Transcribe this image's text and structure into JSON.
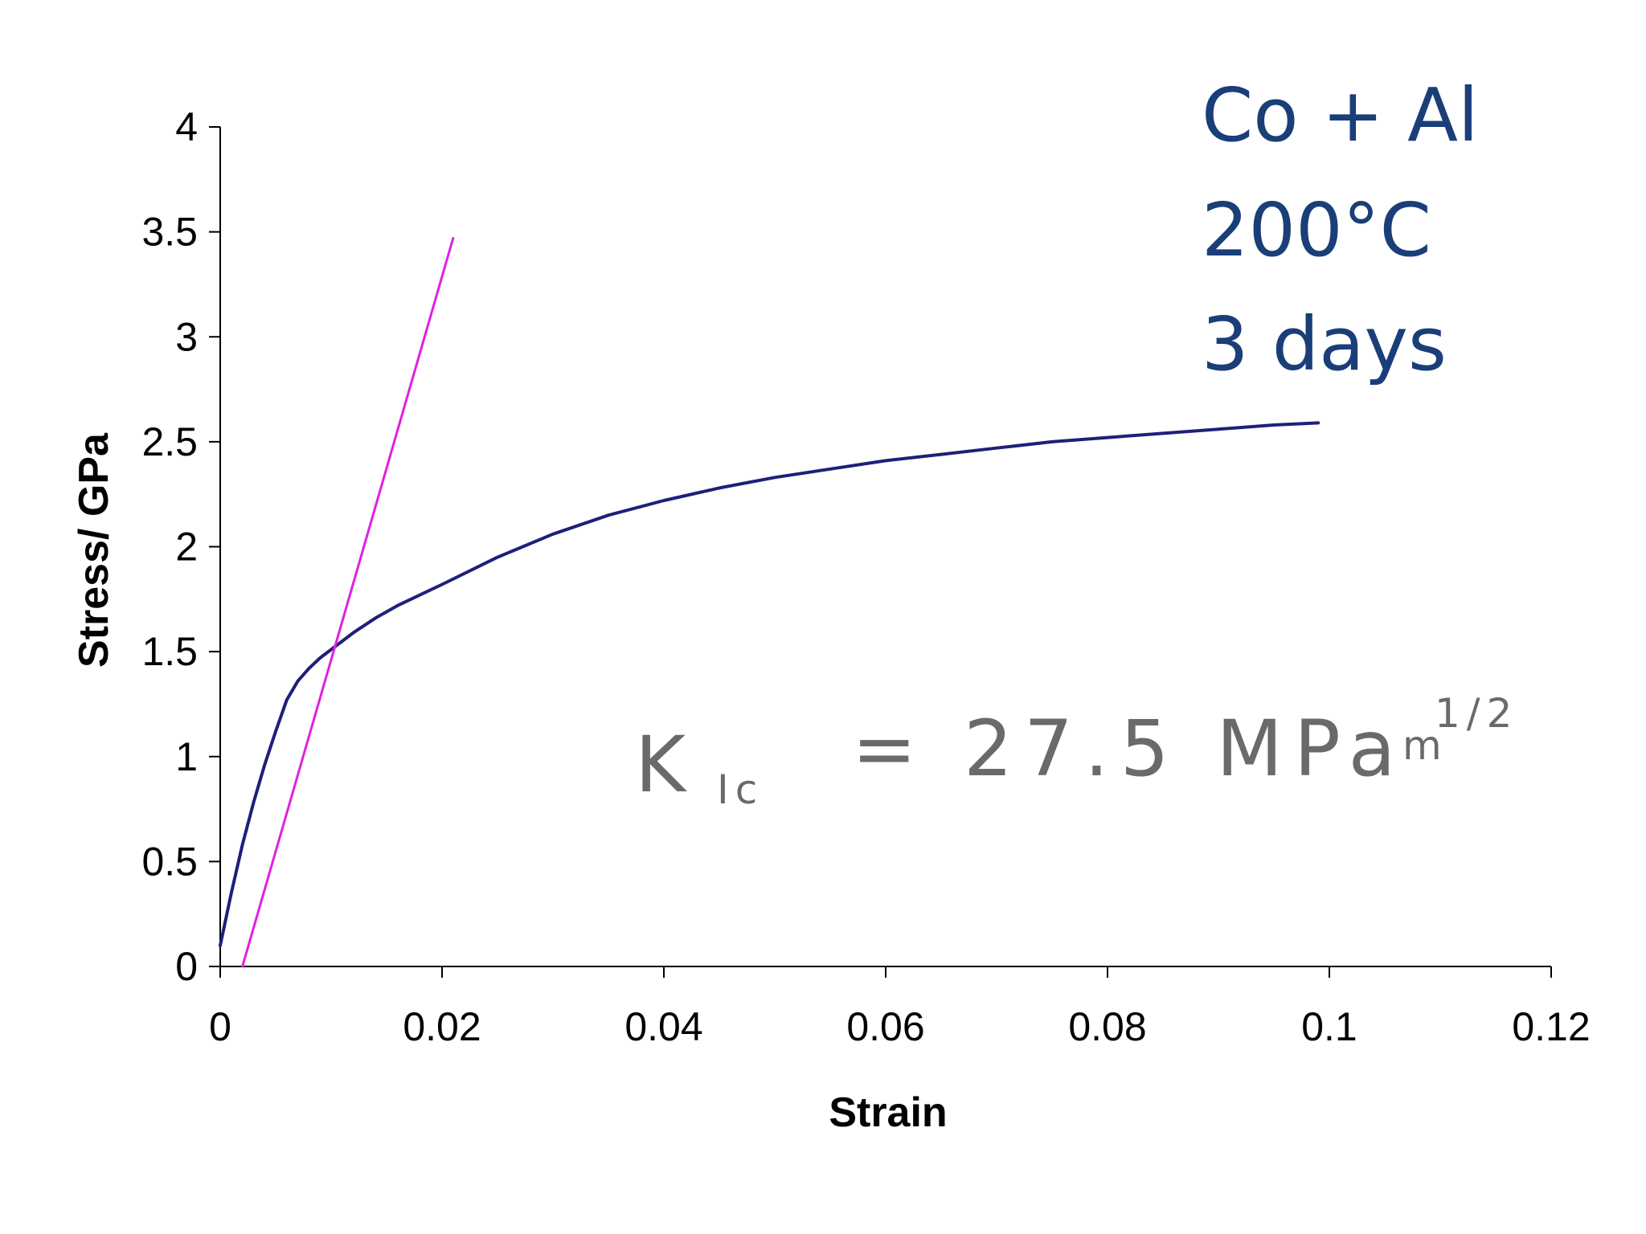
{
  "chart_data": {
    "type": "line",
    "xlabel": "Strain",
    "ylabel": "Stress/ GPa",
    "xlim": [
      0,
      0.12
    ],
    "ylim": [
      0,
      4
    ],
    "x_ticks": [
      "0",
      "0.02",
      "0.04",
      "0.06",
      "0.08",
      "0.1",
      "0.12"
    ],
    "x_tick_values": [
      0,
      0.02,
      0.04,
      0.06,
      0.08,
      0.1,
      0.12
    ],
    "y_ticks": [
      "0",
      "0.5",
      "1",
      "1.5",
      "2",
      "2.5",
      "3",
      "3.5",
      "4"
    ],
    "y_tick_values": [
      0,
      0.5,
      1,
      1.5,
      2,
      2.5,
      3,
      3.5,
      4
    ],
    "grid": false,
    "legend": "none",
    "series": [
      {
        "color": "#1f1f7a",
        "x": [
          0,
          0.001,
          0.002,
          0.003,
          0.004,
          0.005,
          0.006,
          0.007,
          0.008,
          0.009,
          0.01,
          0.012,
          0.014,
          0.016,
          0.018,
          0.02,
          0.025,
          0.03,
          0.035,
          0.04,
          0.045,
          0.05,
          0.055,
          0.06,
          0.065,
          0.07,
          0.075,
          0.08,
          0.085,
          0.09,
          0.095,
          0.099
        ],
        "y": [
          0.1,
          0.35,
          0.58,
          0.78,
          0.96,
          1.12,
          1.27,
          1.36,
          1.42,
          1.47,
          1.51,
          1.59,
          1.66,
          1.72,
          1.77,
          1.82,
          1.95,
          2.06,
          2.15,
          2.22,
          2.28,
          2.33,
          2.37,
          2.41,
          2.44,
          2.47,
          2.5,
          2.52,
          2.54,
          2.56,
          2.58,
          2.59
        ]
      },
      {
        "color": "#e020e0",
        "x": [
          0.002,
          0.021
        ],
        "y": [
          0,
          3.47
        ]
      }
    ],
    "annotations": {
      "material": "Co + Al",
      "temperature": "200°C",
      "duration": "3 days",
      "kic_main": "K",
      "kic_sub": "Ic",
      "kic_value": "= 27.5 MPa",
      "kic_unit": "m",
      "kic_exponent": "1/2"
    }
  }
}
